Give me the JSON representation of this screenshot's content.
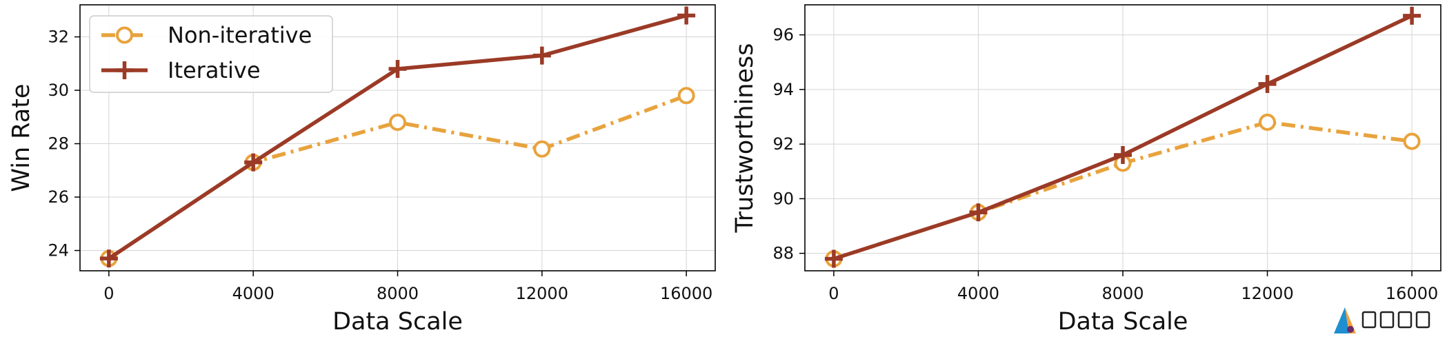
{
  "chart_data": [
    {
      "type": "line",
      "xlabel": "Data Scale",
      "ylabel": "Win Rate",
      "x": [
        0,
        4000,
        8000,
        12000,
        16000
      ],
      "xticks": [
        0,
        4000,
        8000,
        12000,
        16000
      ],
      "yticks": [
        24,
        26,
        28,
        30,
        32
      ],
      "xlim": [
        -800,
        16800
      ],
      "ylim": [
        23.24,
        33.2
      ],
      "grid": true,
      "legend": "top-left",
      "series": [
        {
          "name": "Non-iterative",
          "values": [
            23.7,
            27.3,
            28.8,
            27.8,
            29.8
          ],
          "color": "#E8A33D",
          "line_style": "dash-dot",
          "marker": "open-circle"
        },
        {
          "name": "Iterative",
          "values": [
            23.7,
            27.3,
            30.8,
            31.3,
            32.8
          ],
          "color": "#9B3A26",
          "line_style": "solid",
          "marker": "plus"
        }
      ]
    },
    {
      "type": "line",
      "xlabel": "Data Scale",
      "ylabel": "Trustworthiness",
      "x": [
        0,
        4000,
        8000,
        12000,
        16000
      ],
      "xticks": [
        0,
        4000,
        8000,
        12000,
        16000
      ],
      "yticks": [
        88,
        90,
        92,
        94,
        96
      ],
      "xlim": [
        -800,
        16800
      ],
      "ylim": [
        87.36,
        97.1
      ],
      "grid": true,
      "legend": "none",
      "series": [
        {
          "name": "Non-iterative",
          "values": [
            87.8,
            89.5,
            91.3,
            92.8,
            92.1
          ],
          "color": "#E8A33D",
          "line_style": "dash-dot",
          "marker": "open-circle"
        },
        {
          "name": "Iterative",
          "values": [
            87.8,
            89.5,
            91.6,
            94.2,
            96.7
          ],
          "color": "#9B3A26",
          "line_style": "solid",
          "marker": "plus"
        }
      ]
    }
  ],
  "watermark": "AI万花筒"
}
